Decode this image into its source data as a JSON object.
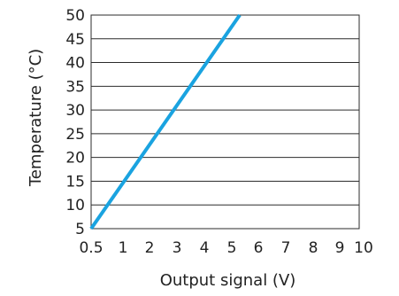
{
  "chart_data": {
    "type": "line",
    "xlabel": "Output signal (V)",
    "ylabel": "Temperature (°C)",
    "xlim": [
      0.5,
      10
    ],
    "ylim": [
      5,
      50
    ],
    "x_ticks": [
      0.5,
      1,
      2,
      3,
      4,
      5,
      6,
      7,
      8,
      9,
      10
    ],
    "x_tick_labels": [
      "0.5",
      "1",
      "2",
      "3",
      "4",
      "5",
      "6",
      "7",
      "8",
      "9",
      "10"
    ],
    "y_ticks": [
      5,
      10,
      15,
      20,
      25,
      30,
      35,
      40,
      45,
      50
    ],
    "y_tick_labels": [
      "5",
      "10",
      "15",
      "20",
      "25",
      "30",
      "35",
      "40",
      "45",
      "50"
    ],
    "grid": "horizontal",
    "series": [
      {
        "x": [
          0.5,
          5.3
        ],
        "y": [
          5,
          50
        ],
        "color": "#1aa3e0"
      }
    ]
  }
}
